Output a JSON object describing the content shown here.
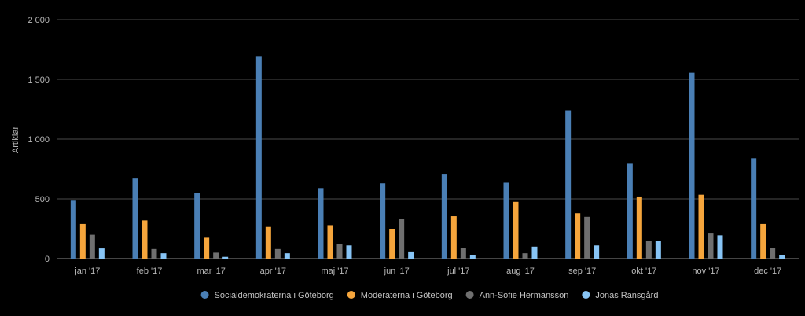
{
  "chart_data": {
    "type": "bar",
    "ylabel": "Artiklar",
    "ylim": [
      0,
      2000
    ],
    "yticks": [
      0,
      500,
      1000,
      1500,
      2000
    ],
    "ytick_labels": [
      "0",
      "500",
      "1 000",
      "1 500",
      "2 000"
    ],
    "grid": true,
    "legend_position": "bottom",
    "categories": [
      "jan '17",
      "feb '17",
      "mar '17",
      "apr '17",
      "maj '17",
      "jun '17",
      "jul '17",
      "aug '17",
      "sep '17",
      "okt '17",
      "nov '17",
      "dec '17"
    ],
    "series": [
      {
        "name": "Socialdemokraterna i Göteborg",
        "color": "#4a7fb5",
        "values": [
          485,
          670,
          550,
          1695,
          590,
          630,
          710,
          635,
          1240,
          800,
          1555,
          840
        ]
      },
      {
        "name": "Moderaterna i Göteborg",
        "color": "#f5a53c",
        "values": [
          290,
          320,
          175,
          265,
          280,
          250,
          355,
          475,
          380,
          520,
          535,
          290
        ]
      },
      {
        "name": "Ann-Sofie Hermansson",
        "color": "#6f6f6f",
        "values": [
          200,
          80,
          50,
          80,
          125,
          335,
          90,
          45,
          350,
          145,
          210,
          90
        ]
      },
      {
        "name": "Jonas Ransgård",
        "color": "#87c4f5",
        "values": [
          85,
          45,
          15,
          45,
          110,
          60,
          30,
          100,
          110,
          145,
          195,
          30
        ]
      }
    ]
  }
}
